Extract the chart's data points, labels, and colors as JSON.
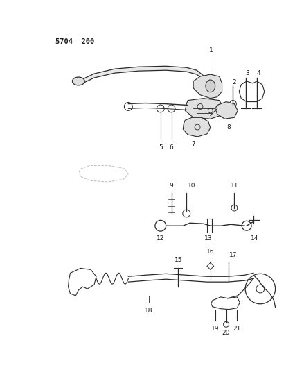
{
  "title": "5704  200",
  "bg_color": "#ffffff",
  "line_color": "#2a2a2a",
  "text_color": "#1a1a1a",
  "figsize": [
    4.27,
    5.33
  ],
  "dpi": 100
}
